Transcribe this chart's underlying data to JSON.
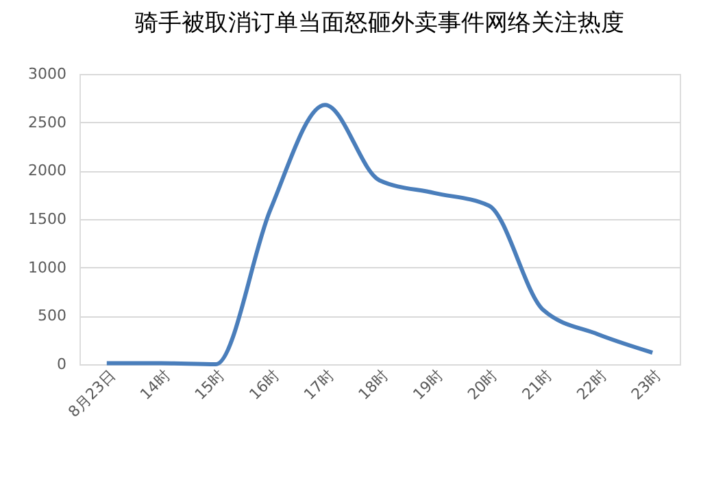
{
  "chart_data": {
    "type": "line",
    "title": "骑手被取消订单当面怒砸外卖事件网络关注热度",
    "categories": [
      "8月23日",
      "14时",
      "15时",
      "16时",
      "17时",
      "18时",
      "19时",
      "20时",
      "21时",
      "22时",
      "23时"
    ],
    "series": [
      {
        "color": "#4a7ebb",
        "values": [
          10,
          10,
          0,
          1600,
          2680,
          1900,
          1770,
          1640,
          560,
          310,
          120
        ]
      }
    ],
    "ylim": [
      0,
      3000
    ],
    "yticks": [
      0,
      500,
      1000,
      1500,
      2000,
      2500,
      3000
    ],
    "grid": "y",
    "marker": "none",
    "line_style": "solid"
  }
}
